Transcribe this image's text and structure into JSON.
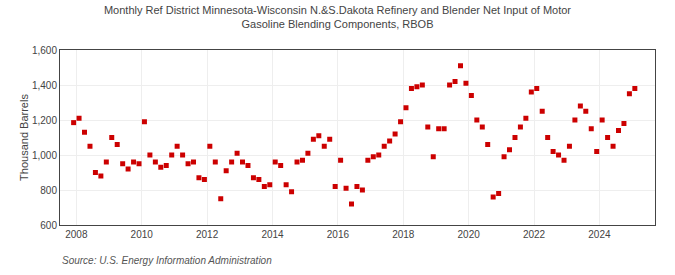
{
  "chart_data": {
    "type": "scatter",
    "title": "Monthly Ref District Minnesota-Wisconsin N.&S.Dakota Refinery and Blender Net Input of Motor\nGasoline Blending Components, RBOB",
    "ylabel": "Thousand Barrels",
    "annotations": [
      "Source: U.S. Energy Information Administration"
    ],
    "color": "#cc0000",
    "marker": "square",
    "grid": true,
    "xlim": [
      2007.5,
      2025.7
    ],
    "xticks": [
      2008,
      2010,
      2012,
      2014,
      2016,
      2018,
      2020,
      2022,
      2024
    ],
    "ylim": [
      600,
      1600
    ],
    "yticks": [
      600,
      800,
      {
        "value": 1000,
        "label": "1,000"
      },
      {
        "value": 1200,
        "label": "1,200"
      },
      {
        "value": 1400,
        "label": "1,400"
      },
      {
        "value": 1600,
        "label": "1,600"
      }
    ],
    "x": [
      2007.917,
      2008.083,
      2008.25,
      2008.417,
      2008.583,
      2008.75,
      2008.917,
      2009.083,
      2009.25,
      2009.417,
      2009.583,
      2009.75,
      2009.917,
      2010.083,
      2010.25,
      2010.417,
      2010.583,
      2010.75,
      2010.917,
      2011.083,
      2011.25,
      2011.417,
      2011.583,
      2011.75,
      2011.917,
      2012.083,
      2012.25,
      2012.417,
      2012.583,
      2012.75,
      2012.917,
      2013.083,
      2013.25,
      2013.417,
      2013.583,
      2013.75,
      2013.917,
      2014.083,
      2014.25,
      2014.417,
      2014.583,
      2014.75,
      2014.917,
      2015.083,
      2015.25,
      2015.417,
      2015.583,
      2015.75,
      2015.917,
      2016.083,
      2016.25,
      2016.417,
      2016.583,
      2016.75,
      2016.917,
      2017.083,
      2017.25,
      2017.417,
      2017.583,
      2017.75,
      2017.917,
      2018.083,
      2018.25,
      2018.417,
      2018.583,
      2018.75,
      2018.917,
      2019.083,
      2019.25,
      2019.417,
      2019.583,
      2019.75,
      2019.917,
      2020.083,
      2020.25,
      2020.417,
      2020.583,
      2020.75,
      2020.917,
      2021.083,
      2021.25,
      2021.417,
      2021.583,
      2021.75,
      2021.917,
      2022.083,
      2022.25,
      2022.417,
      2022.583,
      2022.75,
      2022.917,
      2023.083,
      2023.25,
      2023.417,
      2023.583,
      2023.75,
      2023.917,
      2024.083,
      2024.25,
      2024.417,
      2024.583,
      2024.75,
      2024.917,
      2025.083
    ],
    "values": [
      1185,
      1210,
      1130,
      1050,
      900,
      880,
      960,
      1100,
      1060,
      950,
      920,
      960,
      950,
      1190,
      1000,
      960,
      930,
      940,
      1000,
      1050,
      1000,
      950,
      960,
      870,
      860,
      1050,
      960,
      750,
      910,
      960,
      1010,
      960,
      940,
      870,
      860,
      820,
      830,
      960,
      940,
      830,
      790,
      960,
      970,
      1010,
      1090,
      1110,
      1050,
      1090,
      820,
      970,
      810,
      720,
      820,
      800,
      970,
      990,
      1000,
      1050,
      1080,
      1120,
      1190,
      1270,
      1380,
      1390,
      1400,
      1160,
      990,
      1150,
      1150,
      1400,
      1420,
      1510,
      1410,
      1340,
      1200,
      1160,
      1060,
      760,
      780,
      990,
      1030,
      1100,
      1160,
      1210,
      1360,
      1380,
      1250,
      1100,
      1020,
      1000,
      970,
      1050,
      1200,
      1280,
      1250,
      1150,
      1020,
      1200,
      1100,
      1050,
      1140,
      1180,
      1350,
      1380
    ]
  }
}
